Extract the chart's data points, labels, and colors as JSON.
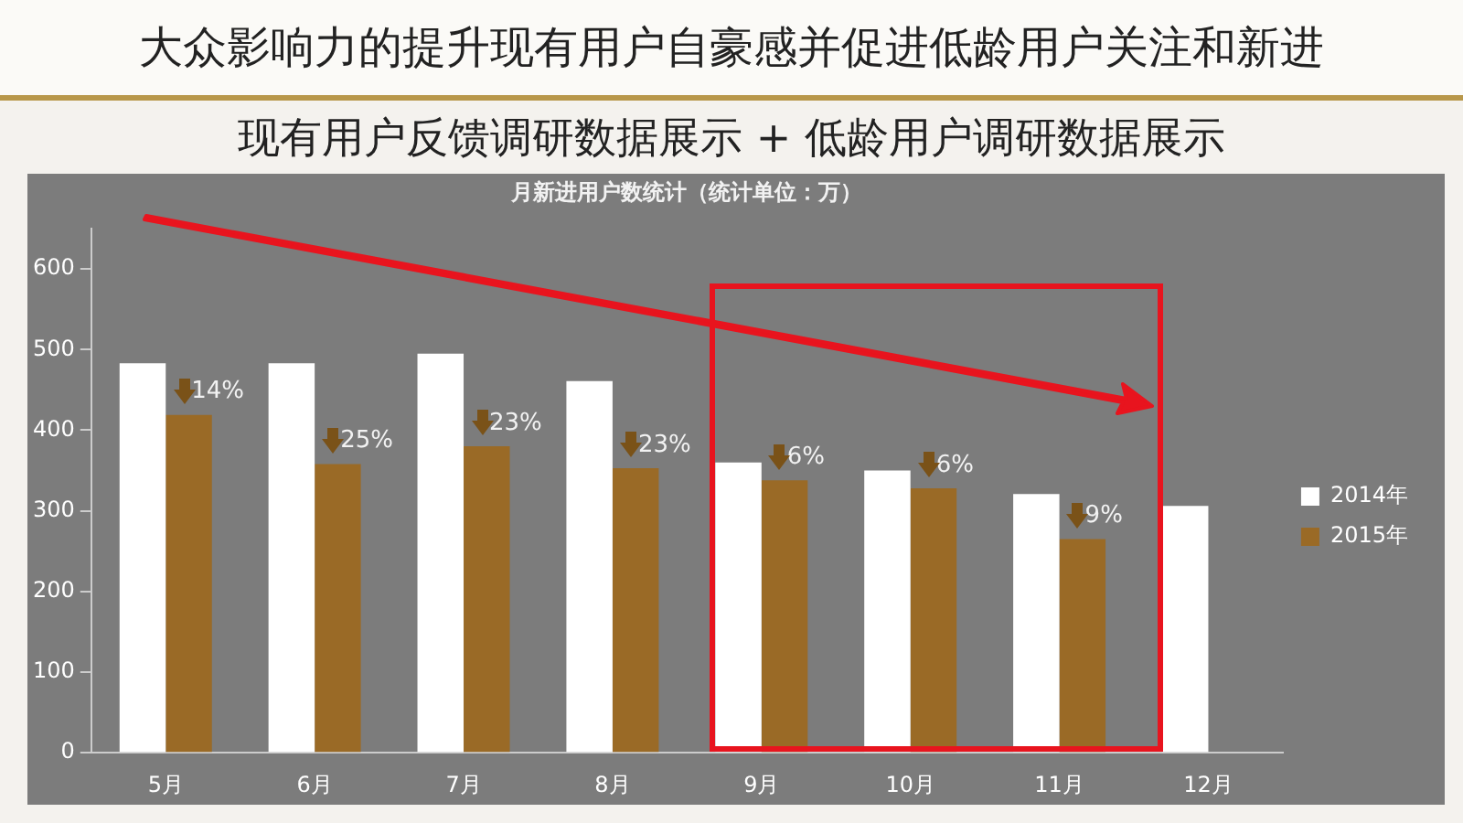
{
  "chart_data": {
    "type": "bar",
    "title": "大众影响力的提升现有用户自豪感并促进低龄用户关注和新进",
    "subtitle": "现有用户反馈调研数据展示 + 低龄用户调研数据展示",
    "categories": [
      "5月",
      "6月",
      "7月",
      "8月",
      "9月",
      "10月",
      "11月",
      "12月"
    ],
    "series": [
      {
        "name": "2014年",
        "color": "#ffffff",
        "values": [
          483,
          483,
          495,
          461,
          360,
          350,
          321,
          306
        ]
      },
      {
        "name": "2015年",
        "color": "#9a6a26",
        "values": [
          419,
          358,
          380,
          353,
          338,
          328,
          265,
          null
        ]
      }
    ],
    "ylim": [
      0,
      650
    ],
    "yticks": [
      0,
      100,
      200,
      300,
      400,
      500,
      600
    ],
    "legend": "right",
    "annotations": [
      "月新进用户数统计（统计单位：万）",
      {
        "text": "14%",
        "x": "5月",
        "y": 419
      },
      {
        "text": "25%",
        "x": "6月",
        "y": 358
      },
      {
        "text": "23%",
        "x": "7月",
        "y": 380
      },
      {
        "text": "23%",
        "x": "8月",
        "y": 353
      },
      {
        "text": "6%",
        "x": "9月",
        "y": 338
      },
      {
        "text": "6%",
        "x": "10月",
        "y": 328
      },
      {
        "text": "9%",
        "x": "11月",
        "y": 265
      }
    ]
  }
}
